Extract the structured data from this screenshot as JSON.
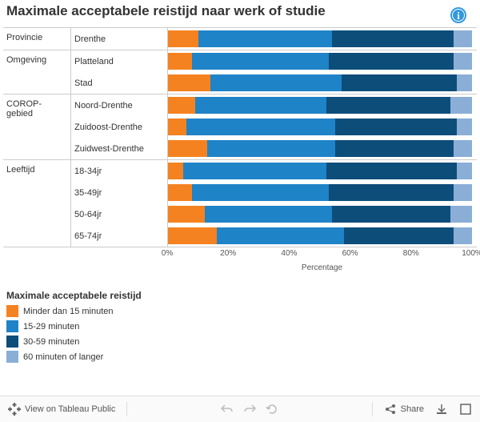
{
  "title": "Maximale acceptabele reistijd naar werk of studie",
  "colors": {
    "c1": "#f58220",
    "c2": "#1f83c7",
    "c3": "#0d4d7a",
    "c4": "#8aaed6",
    "border": "#cccccc"
  },
  "axis": {
    "label": "Percentage",
    "ticks": [
      "0%",
      "20%",
      "40%",
      "60%",
      "80%",
      "100%"
    ]
  },
  "groups": [
    {
      "label": "Provincie",
      "rows": [
        {
          "label": "Drenthe",
          "values": [
            10,
            44,
            40,
            6
          ]
        }
      ]
    },
    {
      "label": "Omgeving",
      "rows": [
        {
          "label": "Platteland",
          "values": [
            8,
            45,
            41,
            6
          ]
        },
        {
          "label": "Stad",
          "values": [
            14,
            43,
            38,
            5
          ]
        }
      ]
    },
    {
      "label": "COROP-gebied",
      "rows": [
        {
          "label": "Noord-Drenthe",
          "values": [
            9,
            43,
            41,
            7
          ]
        },
        {
          "label": "Zuidoost-Drenthe",
          "values": [
            6,
            49,
            40,
            5
          ]
        },
        {
          "label": "Zuidwest-Drenthe",
          "values": [
            13,
            42,
            39,
            6
          ]
        }
      ]
    },
    {
      "label": "Leeftijd",
      "rows": [
        {
          "label": "18-34jr",
          "values": [
            5,
            47,
            43,
            5
          ]
        },
        {
          "label": "35-49jr",
          "values": [
            8,
            45,
            41,
            6
          ]
        },
        {
          "label": "50-64jr",
          "values": [
            12,
            42,
            39,
            7
          ]
        },
        {
          "label": "65-74jr",
          "values": [
            16,
            42,
            36,
            6
          ]
        }
      ]
    }
  ],
  "legend": {
    "title": "Maximale acceptabele reistijd",
    "items": [
      {
        "label": "Minder dan 15 minuten",
        "color": "#f58220"
      },
      {
        "label": "15-29 minuten",
        "color": "#1f83c7"
      },
      {
        "label": "30-59 minuten",
        "color": "#0d4d7a"
      },
      {
        "label": "60 minuten of langer",
        "color": "#8aaed6"
      }
    ]
  },
  "footer": {
    "view": "View on Tableau Public",
    "share": "Share"
  }
}
